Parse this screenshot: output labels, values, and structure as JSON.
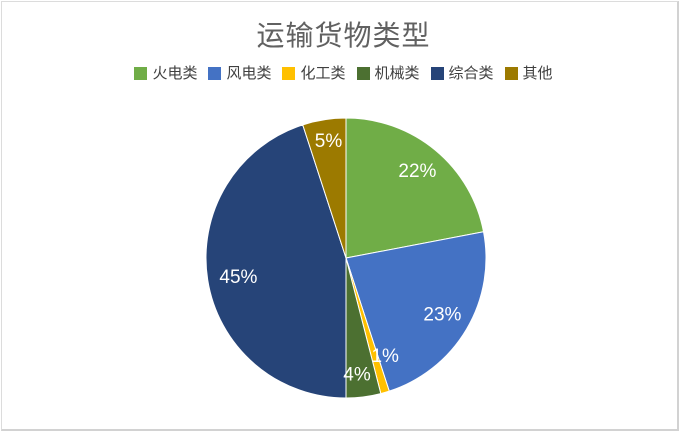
{
  "chart_data": {
    "type": "pie",
    "title": "运输货物类型",
    "categories": [
      "火电类",
      "风电类",
      "化工类",
      "机械类",
      "综合类",
      "其他"
    ],
    "values": [
      22,
      23,
      1,
      4,
      45,
      5
    ],
    "unit": "%",
    "data_labels": [
      "22%",
      "23%",
      "1%",
      "4%",
      "45%",
      "5%"
    ],
    "colors": [
      "#70AD47",
      "#4472C4",
      "#FFC000",
      "#4C7031",
      "#264478",
      "#9C7A00"
    ],
    "label_color": "#FFFFFF",
    "legend_position": "top",
    "start_angle_deg": 0,
    "direction": "clockwise"
  }
}
